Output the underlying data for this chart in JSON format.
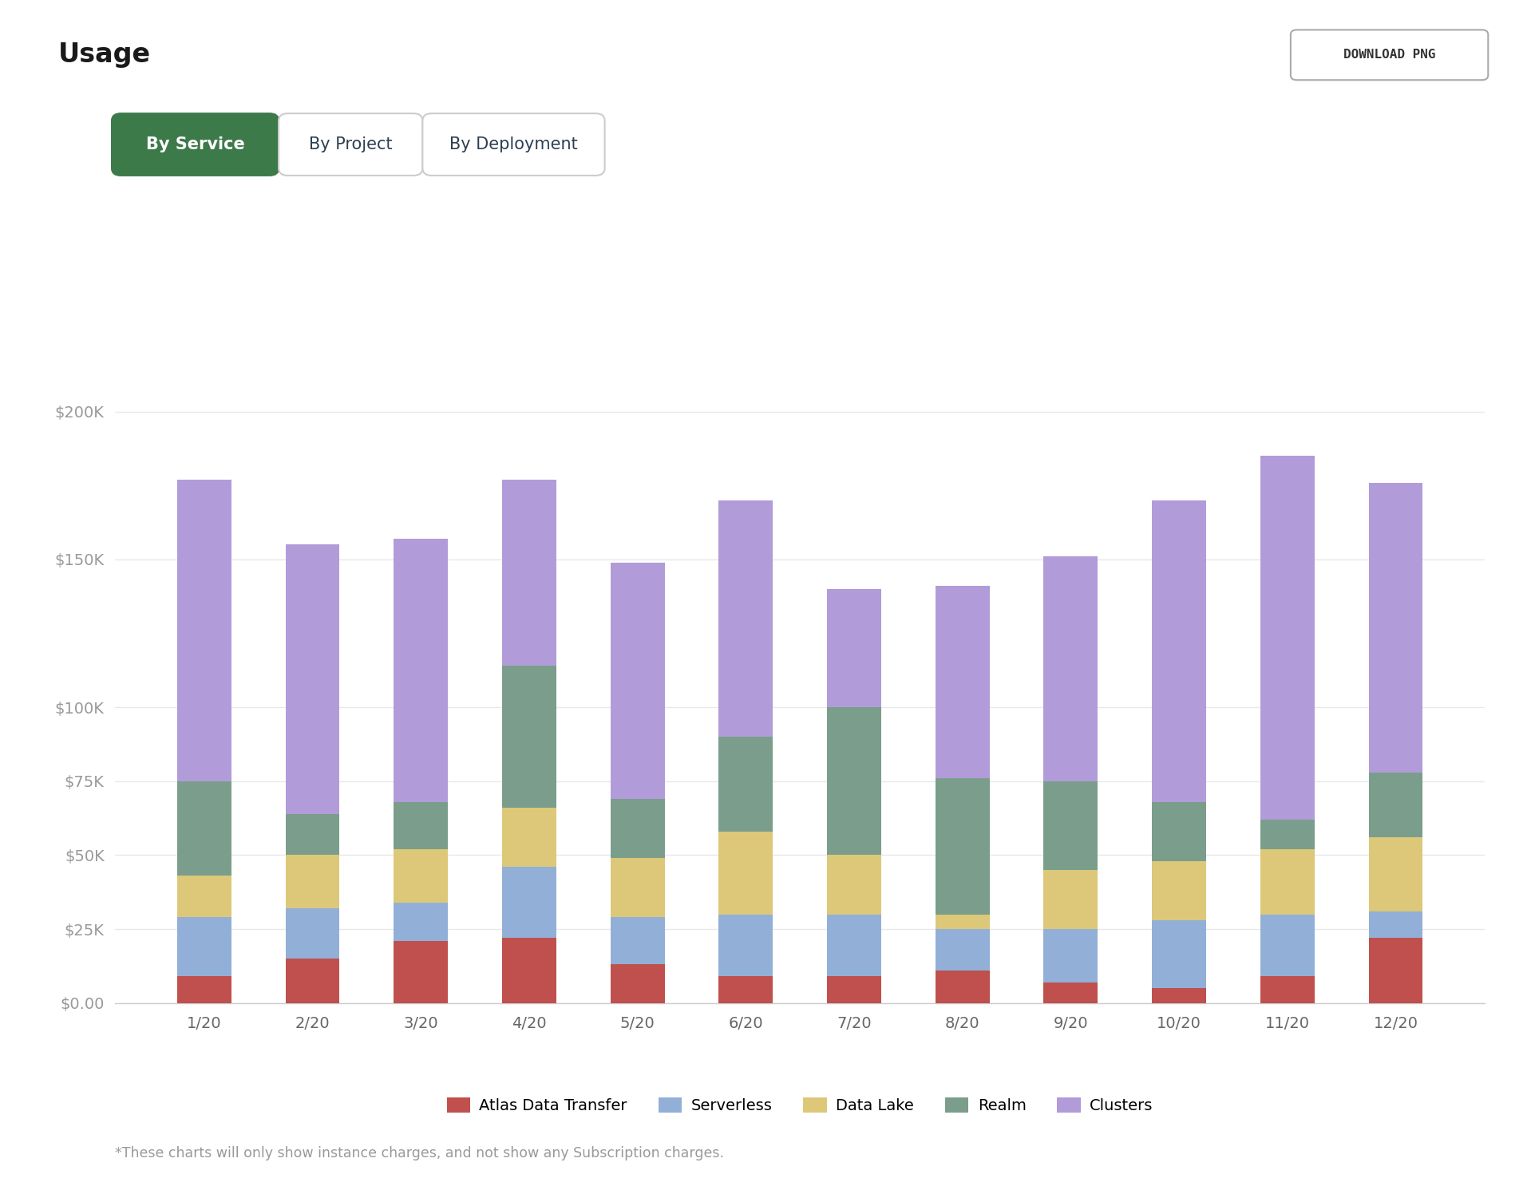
{
  "title": "Usage",
  "categories": [
    "1/20",
    "2/20",
    "3/20",
    "4/20",
    "5/20",
    "6/20",
    "7/20",
    "8/20",
    "9/20",
    "10/20",
    "11/20",
    "12/20"
  ],
  "series": {
    "Atlas Data Transfer": [
      9000,
      15000,
      21000,
      22000,
      13000,
      9000,
      9000,
      11000,
      7000,
      5000,
      9000,
      22000
    ],
    "Serverless": [
      20000,
      17000,
      13000,
      24000,
      16000,
      21000,
      21000,
      14000,
      18000,
      23000,
      21000,
      9000
    ],
    "Data Lake": [
      14000,
      18000,
      18000,
      20000,
      20000,
      28000,
      20000,
      5000,
      20000,
      20000,
      22000,
      25000
    ],
    "Realm": [
      32000,
      14000,
      16000,
      48000,
      20000,
      32000,
      50000,
      46000,
      30000,
      20000,
      10000,
      22000
    ],
    "Clusters": [
      102000,
      91000,
      89000,
      63000,
      80000,
      80000,
      40000,
      65000,
      76000,
      102000,
      123000,
      98000
    ]
  },
  "colors": {
    "Atlas Data Transfer": "#c0504d",
    "Serverless": "#92afd7",
    "Data Lake": "#dcc878",
    "Realm": "#7a9e8b",
    "Clusters": "#b19cd9"
  },
  "ylim": [
    0,
    210000
  ],
  "yticks": [
    0,
    25000,
    50000,
    75000,
    100000,
    150000,
    200000
  ],
  "ytick_labels": [
    "$0.00",
    "$25K",
    "$50K",
    "$75K",
    "$100K",
    "$150K",
    "$200K"
  ],
  "background_color": "#ffffff",
  "grid_color": "#e8e8e8",
  "tab_labels": [
    "By Service",
    "By Project",
    "By Deployment"
  ],
  "tab_active": 0,
  "tab_active_color": "#3d7a4a",
  "tab_active_text_color": "#ffffff",
  "tab_inactive_text_color": "#2c3e50",
  "footnote": "*These charts will only show instance charges, and not show any Subscription charges.",
  "bar_width": 0.5
}
